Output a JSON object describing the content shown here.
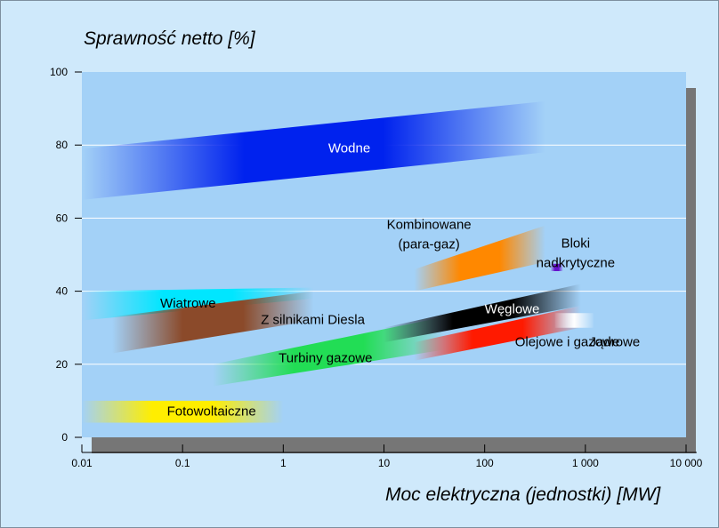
{
  "chart_data": {
    "type": "area",
    "ylabel": "Sprawność netto [%]",
    "xlabel": "Moc elektryczna (jednostki) [MW]",
    "xscale": "log",
    "xlim": [
      0.01,
      10000
    ],
    "ylim": [
      0,
      100
    ],
    "grid": true,
    "y_ticks": [
      0,
      20,
      40,
      60,
      80,
      100
    ],
    "x_ticks": [
      {
        "value": 0.01,
        "label": "0.01"
      },
      {
        "value": 0.1,
        "label": "0.1"
      },
      {
        "value": 1,
        "label": "1"
      },
      {
        "value": 10,
        "label": "10"
      },
      {
        "value": 100,
        "label": "100"
      },
      {
        "value": 1000,
        "label": "1 000"
      },
      {
        "value": 10000,
        "label": "10 000"
      }
    ],
    "series": [
      {
        "name": "Wodne",
        "color": "#0022ee",
        "x": [
          0.01,
          400
        ],
        "y_low": [
          65,
          78
        ],
        "y_high": [
          79,
          92
        ],
        "label_at": [
          2.8,
          78
        ]
      },
      {
        "name": "Wiatrowe",
        "color": "#00e6ff",
        "x": [
          0.01,
          2
        ],
        "y_low": [
          32,
          38
        ],
        "y_high": [
          40,
          41
        ],
        "label_at": [
          0.06,
          35.5
        ]
      },
      {
        "name": "Z silnikami Diesla",
        "color": "#8b4a2a",
        "x": [
          0.02,
          2
        ],
        "y_low": [
          23,
          32
        ],
        "y_high": [
          33,
          40
        ],
        "label_at": [
          0.6,
          31
        ]
      },
      {
        "name": "Turbiny gazowe",
        "color": "#22dd55",
        "x": [
          0.2,
          40
        ],
        "y_low": [
          14,
          24
        ],
        "y_high": [
          20,
          33
        ],
        "label_at": [
          0.9,
          20.5
        ]
      },
      {
        "name": "Fotowoltaiczne",
        "color": "#ffee00",
        "x": [
          0.01,
          1
        ],
        "y_low": [
          4,
          4
        ],
        "y_high": [
          10,
          10
        ],
        "label_at": [
          0.07,
          6
        ]
      },
      {
        "name": "Kombinowane (para-gaz)",
        "color": "#ff8800",
        "line2": "(para-gaz)",
        "label1": "Kombinowane",
        "x": [
          20,
          400
        ],
        "y_low": [
          40,
          48
        ],
        "y_high": [
          46,
          58
        ],
        "label_at": [
          28,
          57
        ]
      },
      {
        "name": "Węglowe",
        "color": "#000000",
        "x": [
          10,
          900
        ],
        "y_low": [
          26,
          36
        ],
        "y_high": [
          30,
          42
        ],
        "label_at": [
          100,
          34
        ]
      },
      {
        "name": "Olejowe i gazowe",
        "color": "#ff1a00",
        "x": [
          20,
          900
        ],
        "y_low": [
          21,
          30
        ],
        "y_high": [
          26,
          36
        ],
        "label_at": [
          200,
          25
        ]
      },
      {
        "name": "Bloki nadkrytyczne",
        "color": "#6611cc",
        "label1": "Bloki",
        "line2": "nadkrytyczne",
        "x": [
          450,
          600
        ],
        "y_low": [
          45.5,
          45.5
        ],
        "y_high": [
          47.5,
          47.5
        ],
        "label_at": [
          800,
          52
        ]
      },
      {
        "name": "Jądrowe",
        "color": "#ffffff",
        "x": [
          500,
          1200
        ],
        "y_low": [
          30,
          30
        ],
        "y_high": [
          34,
          34
        ],
        "label_at": [
          1100,
          25
        ]
      }
    ]
  }
}
